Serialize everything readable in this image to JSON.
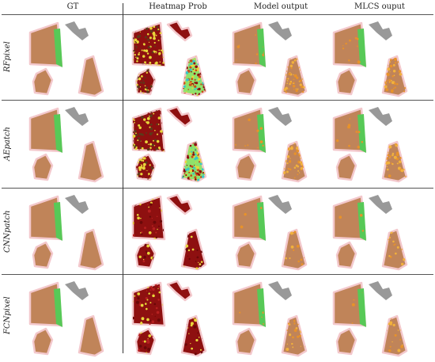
{
  "columns": [
    "GT",
    "Heatmap Prob",
    "Model output",
    "MLCS ouput"
  ],
  "rows": [
    "RFpixel",
    "AEpatch",
    "CNNpatch",
    "FCNpixel"
  ],
  "colors": {
    "field": "#c08459",
    "green_strip": "#57c957",
    "gray_shape": "#999999",
    "heat_dark": "#8e1010",
    "heat_yellow": "#e8d63a",
    "heat_green": "#8fe26a",
    "heat_cyan": "#39c6c6",
    "detection": "#e8922a",
    "halo": "#f3c8cc"
  }
}
